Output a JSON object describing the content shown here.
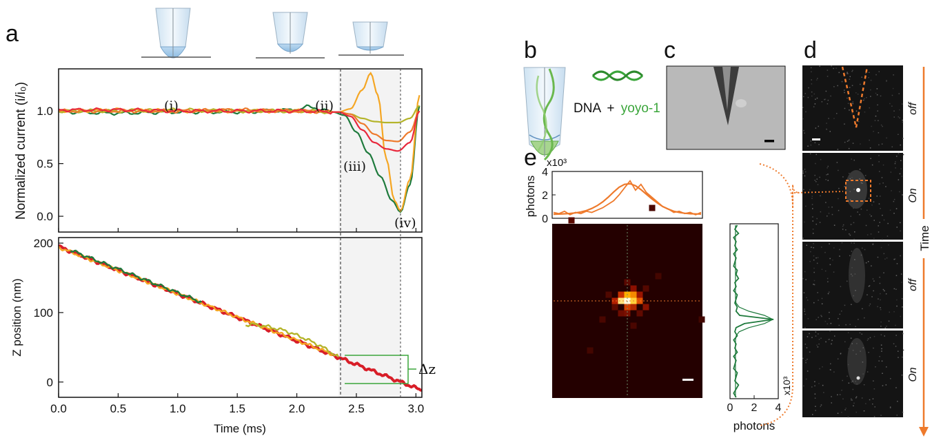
{
  "panels": {
    "a": "a",
    "b": "b",
    "c": "c",
    "d": "d",
    "e": "e"
  },
  "annotations": {
    "i": "(i)",
    "ii": "(ii)",
    "iii": "(iii)",
    "iv": "(iv)",
    "delta_z": "Δz",
    "dna": "DNA",
    "plus": "+",
    "yoyo": "yoyo-1",
    "time": "Time",
    "states": [
      "off",
      "On",
      "off",
      "On"
    ]
  },
  "colors": {
    "dark_green": "#1e7a3c",
    "olive": "#b4b42a",
    "orange": "#f5a623",
    "dark_orange": "#ee7a2c",
    "red": "#e8283c",
    "crimson": "#d81e28",
    "gray_band": "#f3f3f3",
    "dna_green": "#3aa53a"
  },
  "chart_data": [
    {
      "type": "line",
      "panel": "a-top",
      "ylabel": "Normalized current (i/i₀)",
      "xlim": [
        0,
        3.05
      ],
      "ylim": [
        -0.15,
        1.4
      ],
      "yticks": [
        "0.0",
        "0.5",
        "1.0"
      ],
      "shaded_region": [
        2.35,
        2.87
      ],
      "vlines": [
        2.35,
        2.87
      ],
      "series": [
        {
          "color": "#1e7a3c",
          "x": [
            0,
            0.5,
            1.0,
            1.5,
            2.0,
            2.1,
            2.3,
            2.4,
            2.5,
            2.6,
            2.7,
            2.8,
            2.87,
            2.95,
            3.03
          ],
          "y": [
            0.99,
            0.98,
            0.99,
            0.99,
            1.01,
            1.04,
            0.99,
            0.96,
            0.8,
            0.6,
            0.38,
            0.15,
            0.04,
            0.3,
            1.05
          ]
        },
        {
          "color": "#f5a623",
          "x": [
            0,
            0.5,
            1.0,
            1.5,
            2.0,
            2.35,
            2.45,
            2.55,
            2.62,
            2.68,
            2.75,
            2.82,
            2.87,
            2.95,
            3.03
          ],
          "y": [
            1.0,
            1.01,
            1.0,
            1.0,
            1.0,
            0.99,
            1.02,
            1.2,
            1.36,
            1.15,
            0.55,
            0.15,
            0.05,
            0.35,
            1.15
          ]
        },
        {
          "color": "#b4b42a",
          "x": [
            0,
            0.5,
            1.0,
            1.5,
            2.0,
            2.35,
            2.45,
            2.55,
            2.65,
            2.75,
            2.85,
            2.95,
            3.03
          ],
          "y": [
            1.0,
            1.0,
            1.01,
            1.0,
            1.0,
            0.99,
            0.97,
            0.93,
            0.9,
            0.89,
            0.89,
            0.93,
            1.05
          ]
        },
        {
          "color": "#ee7a2c",
          "x": [
            0,
            0.5,
            1.0,
            1.5,
            2.0,
            2.35,
            2.45,
            2.55,
            2.65,
            2.75,
            2.85,
            2.95,
            3.03
          ],
          "y": [
            1.0,
            1.0,
            1.0,
            1.01,
            1.0,
            0.99,
            0.97,
            0.88,
            0.78,
            0.72,
            0.71,
            0.8,
            1.0
          ]
        },
        {
          "color": "#e8283c",
          "x": [
            0,
            0.5,
            1.0,
            1.5,
            2.0,
            2.35,
            2.45,
            2.55,
            2.65,
            2.75,
            2.85,
            2.95,
            3.03
          ],
          "y": [
            1.01,
            1.01,
            1.0,
            1.0,
            1.0,
            0.99,
            0.95,
            0.82,
            0.7,
            0.64,
            0.62,
            0.7,
            1.0
          ]
        }
      ]
    },
    {
      "type": "line",
      "panel": "a-bottom",
      "xlabel": "Time (ms)",
      "ylabel": "Z position (nm)",
      "xlim": [
        0,
        3.05
      ],
      "ylim": [
        -22,
        208
      ],
      "xticks": [
        "0.0",
        "0.5",
        "1.0",
        "1.5",
        "2.0",
        "2.5",
        "3.0"
      ],
      "yticks": [
        "0",
        "100",
        "200"
      ],
      "series": [
        {
          "color": "#d81e28",
          "x": [
            0,
            3.05
          ],
          "y": [
            195,
            -12
          ]
        },
        {
          "color": "#f5a623",
          "x": [
            0,
            2.3
          ],
          "y": [
            194,
            40
          ]
        },
        {
          "color": "#1e7a3c",
          "x": [
            0.1,
            1.2
          ],
          "y": [
            190,
            115
          ]
        },
        {
          "color": "#b4b42a",
          "x": [
            1.57,
            1.65,
            1.75,
            1.9,
            2.05,
            2.2,
            2.35
          ],
          "y": [
            82,
            83,
            80,
            74,
            64,
            52,
            36
          ]
        }
      ],
      "delta_z_range": [
        0,
        36
      ]
    },
    {
      "type": "line",
      "panel": "e-top",
      "ylabel": "photons",
      "yscale_label": "x10³",
      "ylim": [
        0,
        4
      ],
      "yticks": [
        "0",
        "2",
        "4"
      ],
      "series": [
        {
          "color": "#ee7a2c",
          "name": "",
          "values": [
            0.5,
            0.4,
            0.6,
            0.3,
            0.5,
            0.4,
            0.6,
            0.5,
            0.7,
            0.9,
            1.2,
            1.5,
            2.0,
            2.6,
            3.2,
            2.4,
            2.9,
            2.2,
            1.8,
            1.4,
            1.0,
            0.8,
            0.5,
            0.6,
            0.4,
            0.5,
            0.3,
            0.5
          ]
        },
        {
          "color": "#ee7a2c",
          "name": "",
          "values": [
            0.35,
            0.36,
            0.38,
            0.41,
            0.46,
            0.54,
            0.66,
            0.84,
            1.08,
            1.4,
            1.8,
            2.25,
            2.65,
            2.9,
            2.95,
            2.78,
            2.45,
            2.05,
            1.65,
            1.3,
            1.0,
            0.78,
            0.6,
            0.5,
            0.43,
            0.39,
            0.37,
            0.36
          ]
        }
      ]
    },
    {
      "type": "line",
      "panel": "e-right",
      "xlabel": "photons",
      "xscale_label": "x10³",
      "xlim": [
        0,
        4
      ],
      "xticks": [
        "0",
        "2",
        "4"
      ],
      "series": [
        {
          "color": "#1e7a3c",
          "name": "",
          "values": [
            0.6,
            0.4,
            0.7,
            0.3,
            0.5,
            0.4,
            0.6,
            0.3,
            0.5,
            0.4,
            0.3,
            0.6,
            0.5,
            0.7,
            0.4,
            0.5,
            0.3,
            0.6,
            0.5,
            0.4,
            0.6,
            0.5,
            0.8,
            3.6,
            1.2,
            0.5,
            0.4,
            0.6,
            0.3,
            0.5,
            0.4,
            0.6,
            0.3,
            0.5,
            0.4,
            0.3,
            0.6,
            0.5,
            0.4,
            0.7,
            0.5,
            0.3,
            0.5
          ]
        }
      ]
    }
  ]
}
